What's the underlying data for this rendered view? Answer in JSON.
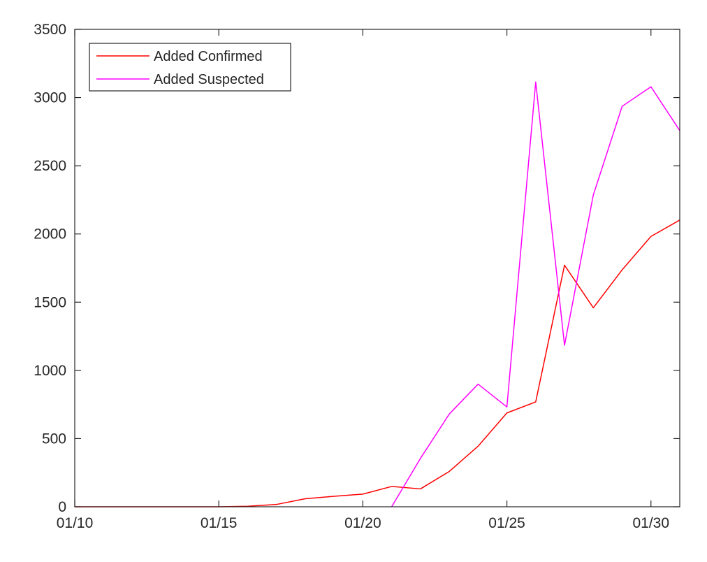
{
  "chart_data": {
    "type": "line",
    "x": [
      "01/10",
      "01/11",
      "01/12",
      "01/13",
      "01/14",
      "01/15",
      "01/16",
      "01/17",
      "01/18",
      "01/19",
      "01/20",
      "01/21",
      "01/22",
      "01/23",
      "01/24",
      "01/25",
      "01/26",
      "01/27",
      "01/28",
      "01/29",
      "01/30",
      "01/31"
    ],
    "x_ticks": [
      "01/10",
      "01/15",
      "01/20",
      "01/25",
      "01/30"
    ],
    "y_ticks": [
      "0",
      "500",
      "1000",
      "1500",
      "2000",
      "2500",
      "3000",
      "3500"
    ],
    "ylim": [
      0,
      3500
    ],
    "grid": false,
    "legend_position": "top-left",
    "series": [
      {
        "name": "Added Confirmed",
        "color": "#ff0000",
        "values": [
          0,
          0,
          0,
          0,
          0,
          0,
          4,
          17,
          59,
          77,
          93,
          149,
          131,
          259,
          444,
          688,
          769,
          1771,
          1459,
          1737,
          1982,
          2102
        ]
      },
      {
        "name": "Added Suspected",
        "color": "#ff00ff",
        "values": [
          null,
          null,
          null,
          null,
          null,
          null,
          null,
          null,
          null,
          null,
          null,
          0,
          355,
          680,
          899,
          732,
          3114,
          1184,
          2286,
          2936,
          3079,
          2758
        ]
      }
    ]
  }
}
